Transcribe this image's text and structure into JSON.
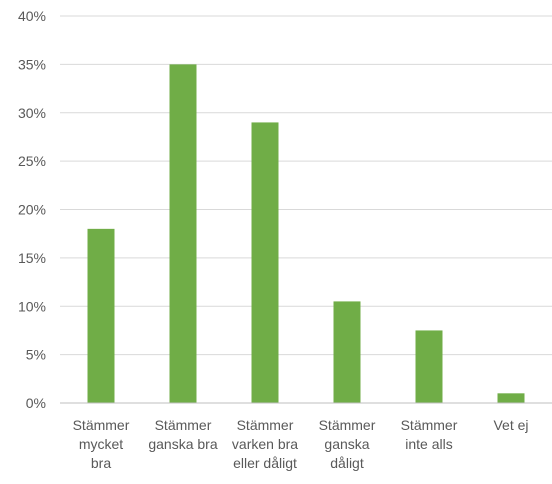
{
  "chart_data": {
    "type": "bar",
    "title": "",
    "xlabel": "",
    "ylabel": "",
    "categories": [
      [
        "Stämmer",
        "mycket",
        "bra"
      ],
      [
        "Stämmer",
        "ganska bra"
      ],
      [
        "Stämmer",
        "varken bra",
        "eller dåligt"
      ],
      [
        "Stämmer",
        "ganska",
        "dåligt"
      ],
      [
        "Stämmer",
        "inte alls"
      ],
      [
        "Vet ej"
      ]
    ],
    "values": [
      18,
      35,
      29,
      10.5,
      7.5,
      1
    ],
    "unit": "%",
    "ylim": [
      0,
      40
    ],
    "yticks": [
      "0%",
      "5%",
      "10%",
      "15%",
      "20%",
      "25%",
      "30%",
      "35%",
      "40%"
    ],
    "bar_color": "#70ad47",
    "grid": true,
    "legend": "none"
  }
}
